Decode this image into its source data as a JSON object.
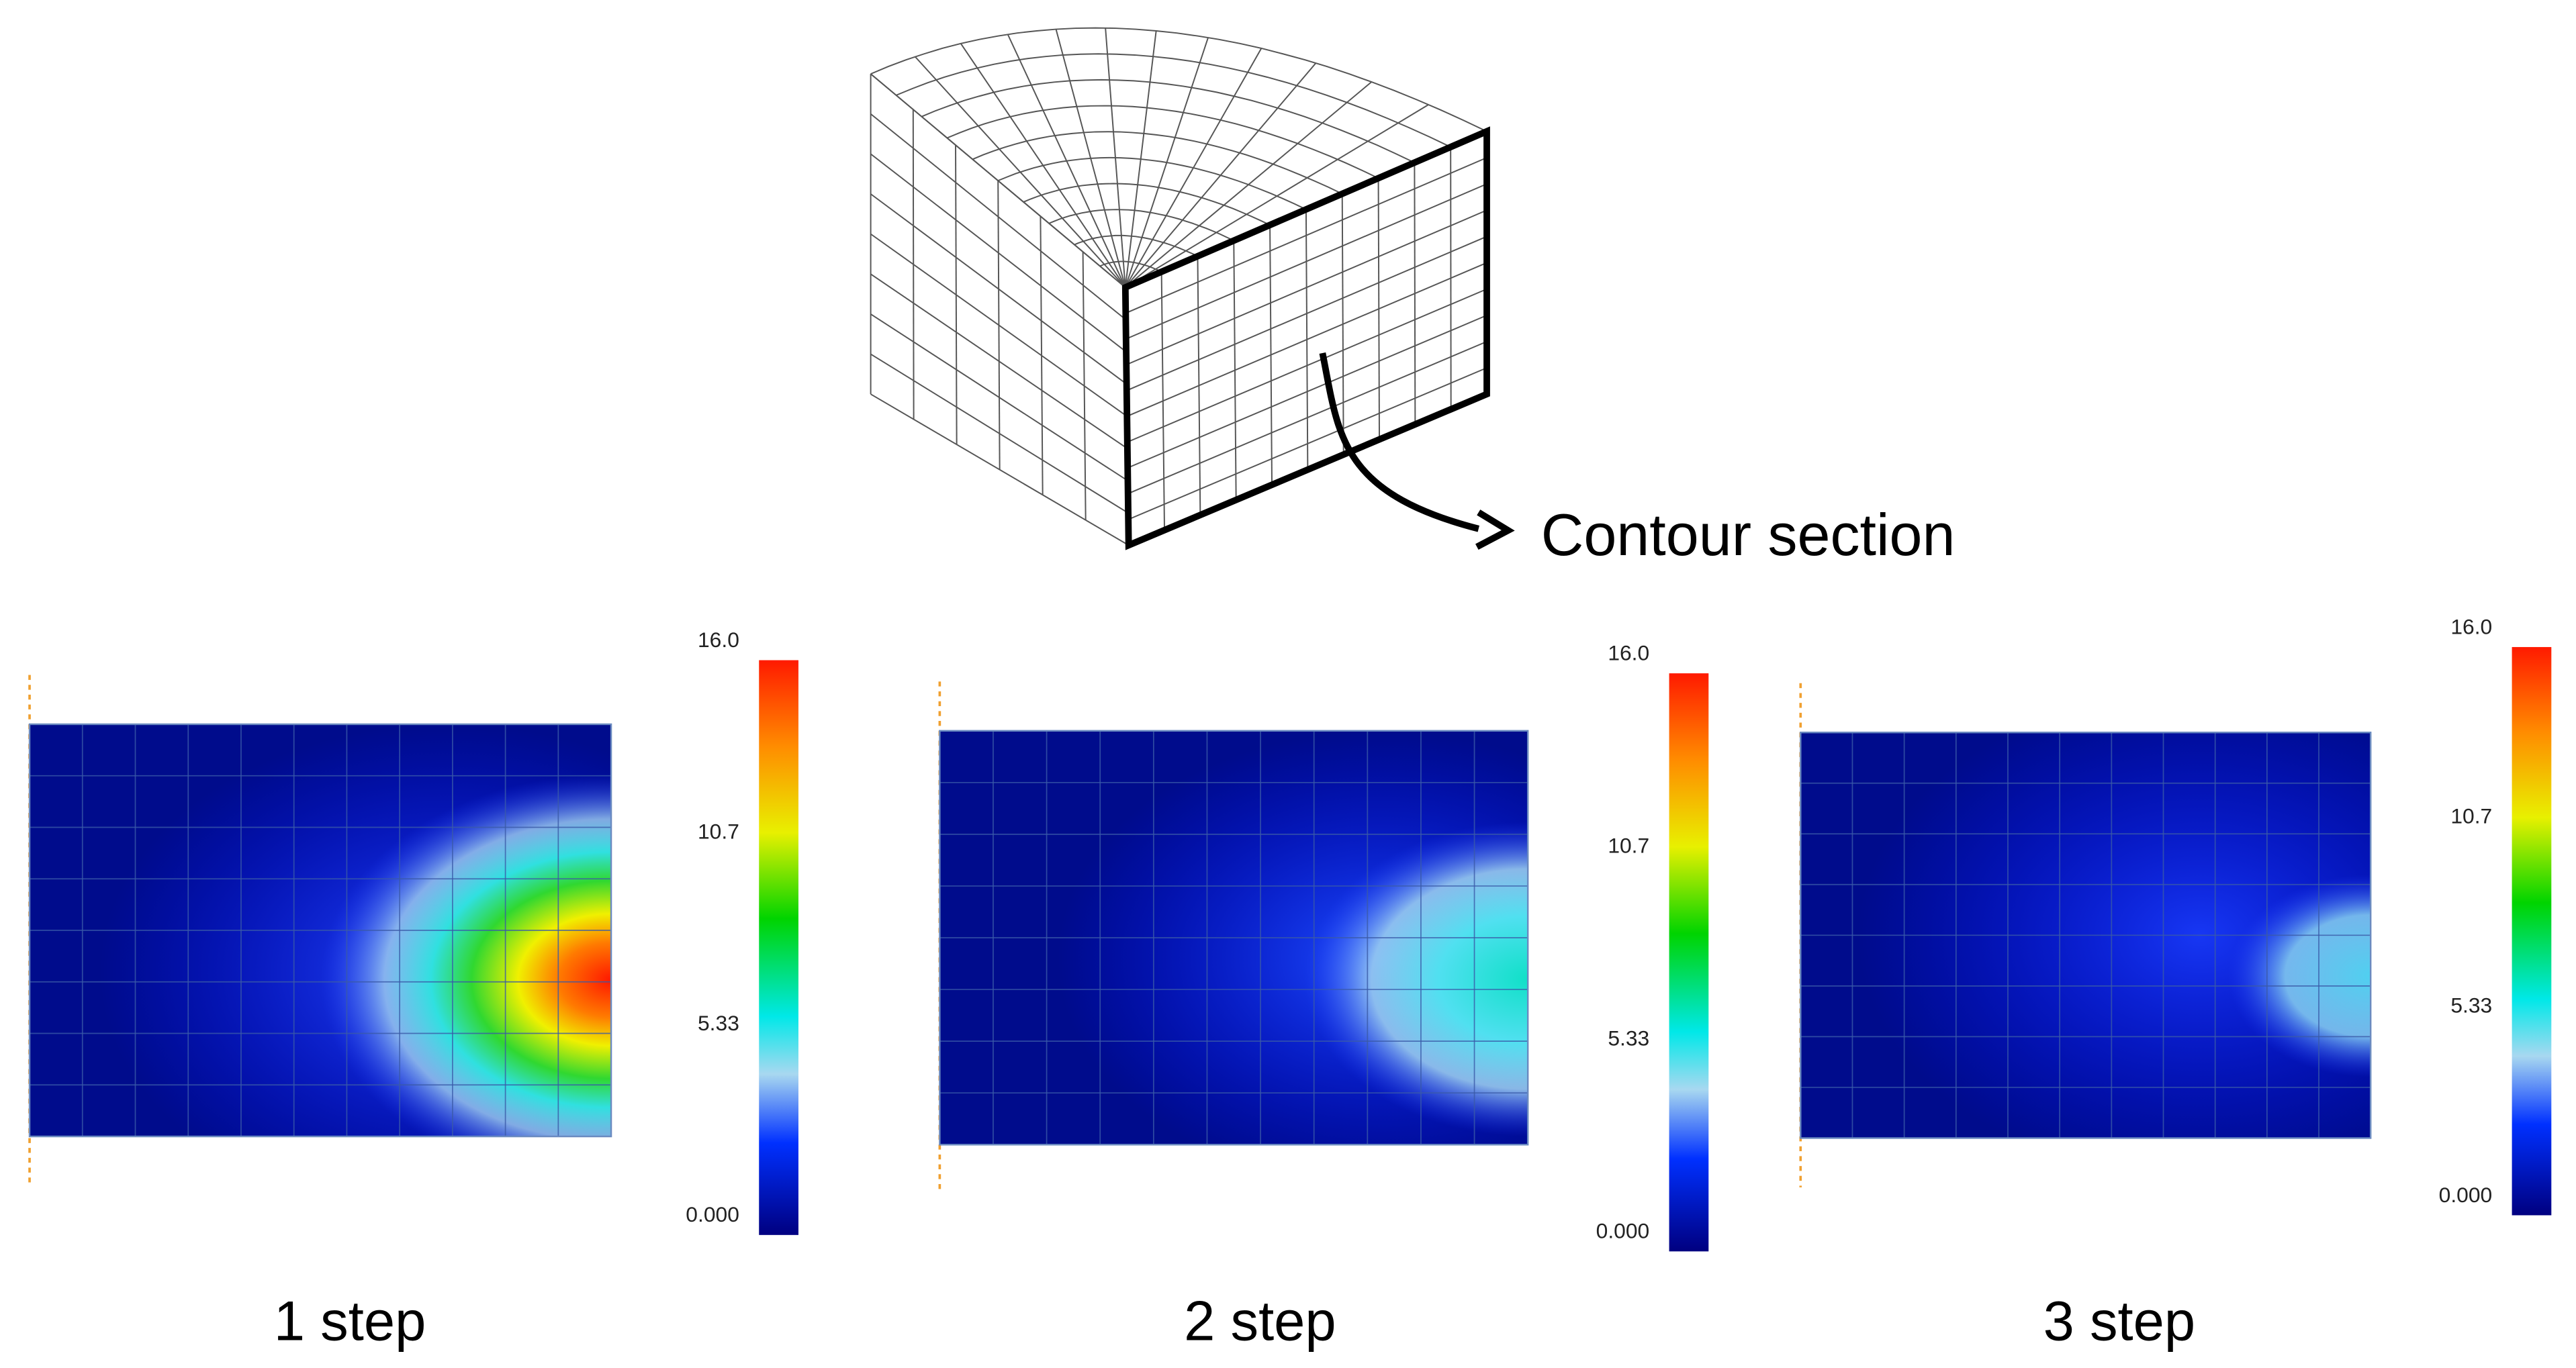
{
  "annotation": {
    "label": "Contour section"
  },
  "panels": [
    {
      "label": "1 step",
      "colorbar": [
        "16.0",
        "10.7",
        "5.33",
        "0.000"
      ]
    },
    {
      "label": "2 step",
      "colorbar": [
        "16.0",
        "10.7",
        "5.33",
        "0.000"
      ]
    },
    {
      "label": "3 step",
      "colorbar": [
        "16.0",
        "10.7",
        "5.33",
        "0.000"
      ]
    }
  ]
}
